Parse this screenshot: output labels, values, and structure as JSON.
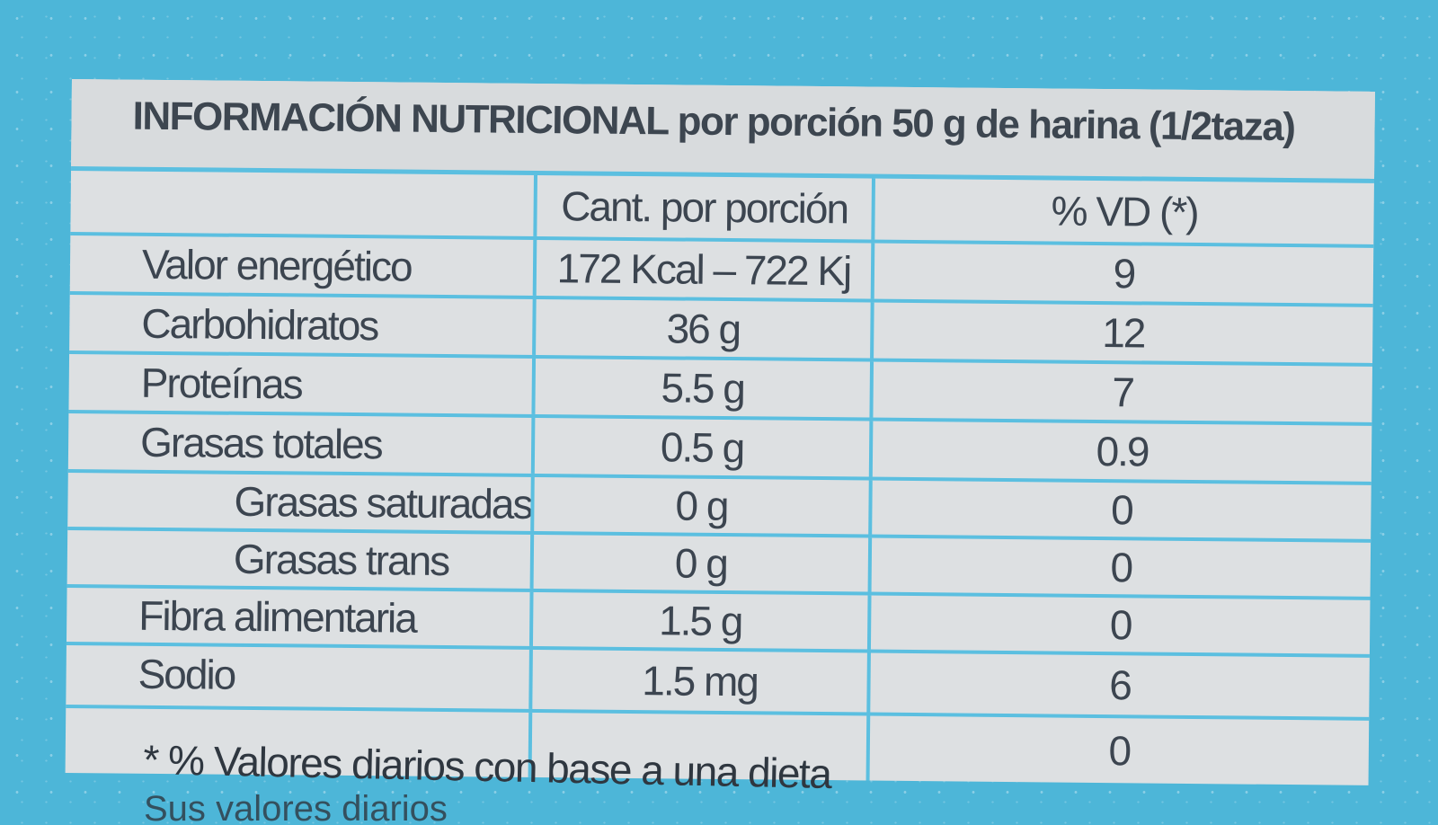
{
  "label": {
    "title": "INFORMACIÓN NUTRICIONAL por porción 50 g de harina (1/2taza)",
    "headers": [
      "",
      "Cant. por porción",
      "% VD (*)"
    ],
    "rows": [
      {
        "nutrient": "Valor energético",
        "amount": "172 Kcal – 722 Kj",
        "vd": "9"
      },
      {
        "nutrient": "Carbohidratos",
        "amount": "36 g",
        "vd": "12"
      },
      {
        "nutrient": "Proteínas",
        "amount": "5.5 g",
        "vd": "7"
      },
      {
        "nutrient": "Grasas totales",
        "amount": "0.5 g",
        "vd": "0.9"
      },
      {
        "nutrient": "Grasas saturadas",
        "amount": "0 g",
        "vd": "0"
      },
      {
        "nutrient": "Grasas trans",
        "amount": "0 g",
        "vd": "0"
      },
      {
        "nutrient": "Fibra alimentaria",
        "amount": "1.5 g",
        "vd": "0"
      },
      {
        "nutrient": "Sodio",
        "amount": "1.5 mg",
        "vd": "6"
      },
      {
        "nutrient": "",
        "amount": "",
        "vd": "0"
      }
    ],
    "footnote": "* % Valores diarios con base a una dieta",
    "footnote_cut": "Sus valores diarios"
  },
  "colors": {
    "background": "#4db6d8",
    "table": "#dde0e2",
    "lines": "#5bbfe0",
    "text": "#3c4550"
  }
}
